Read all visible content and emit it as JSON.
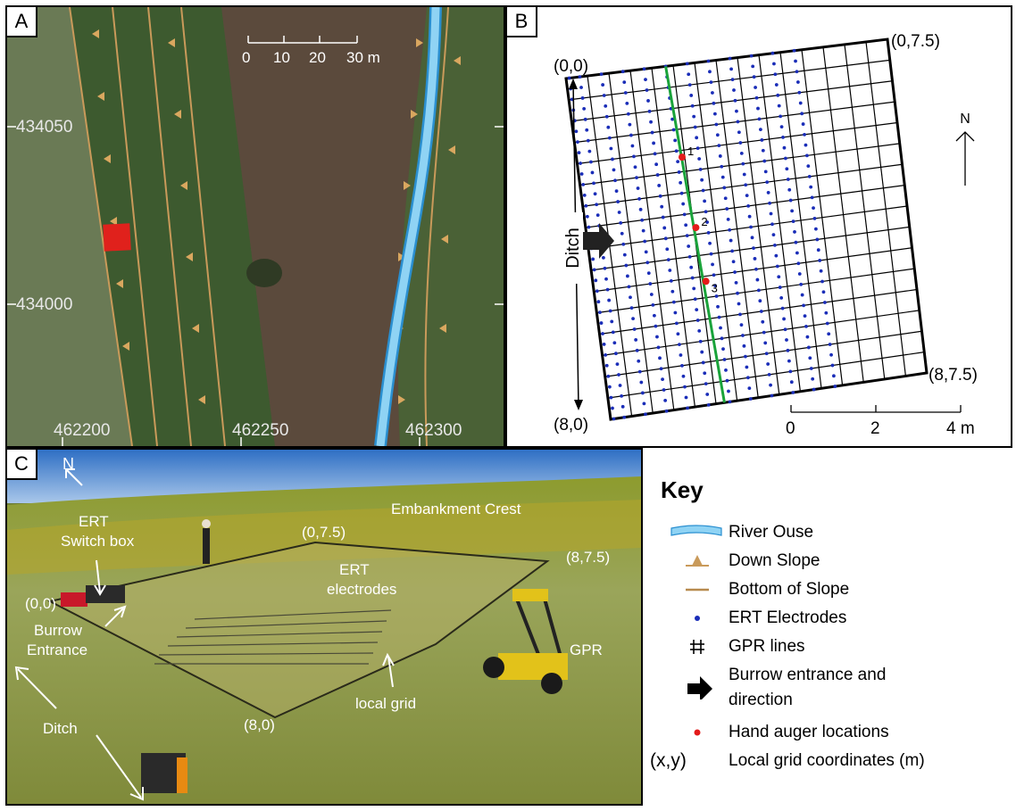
{
  "panel_a": {
    "label": "A",
    "scale_ticks": [
      "0",
      "10",
      "20",
      "30 m"
    ],
    "northings": [
      "434050",
      "434000"
    ],
    "eastings": [
      "462200",
      "462250",
      "462300"
    ]
  },
  "panel_b": {
    "label": "B",
    "corners": {
      "top_left": "(0,0)",
      "top_right": "(0,7.5)",
      "bottom_left": "(8,0)",
      "bottom_right": "(8,7.5)"
    },
    "ditch_label": "Ditch",
    "north_label": "N",
    "auger_labels": [
      "1",
      "2",
      "3"
    ],
    "scale_ticks": [
      "0",
      "2",
      "4 m"
    ]
  },
  "panel_c": {
    "label": "C",
    "north_label": "N",
    "ert_switch_box": [
      "ERT",
      "Switch box"
    ],
    "embankment_crest": "Embankment Crest",
    "corners": {
      "top_left": "(0,0)",
      "top_right": "(0,7.5)",
      "bottom_left": "(8,0)",
      "bottom_right": "(8,7.5)"
    },
    "ert_electrodes": [
      "ERT",
      "electrodes"
    ],
    "burrow_entrance": [
      "Burrow",
      "Entrance"
    ],
    "gpr": "GPR",
    "local_grid": "local grid",
    "ditch": "Ditch"
  },
  "key": {
    "title": "Key",
    "items": [
      {
        "symbol": "river",
        "label": "River Ouse"
      },
      {
        "symbol": "down-slope",
        "label": "Down Slope"
      },
      {
        "symbol": "bottom-slope",
        "label": "Bottom of Slope"
      },
      {
        "symbol": "ert-dot",
        "label": "ERT Electrodes"
      },
      {
        "symbol": "gpr-hash",
        "label": "GPR lines"
      },
      {
        "symbol": "burrow-arrow",
        "label": "Burrow entrance and",
        "label2": "direction"
      },
      {
        "symbol": "auger-dot",
        "label": "Hand auger locations"
      },
      {
        "symbol": "xy",
        "glyph": "(x,y)",
        "label": "Local grid coordinates (m)"
      }
    ]
  },
  "colors": {
    "river": "#8fd3f4",
    "river_edge": "#2a8fd0",
    "slope": "#c99a5a",
    "ert": "#1a2db8",
    "auger": "#e31b1b",
    "green_line": "#1aa33a"
  }
}
